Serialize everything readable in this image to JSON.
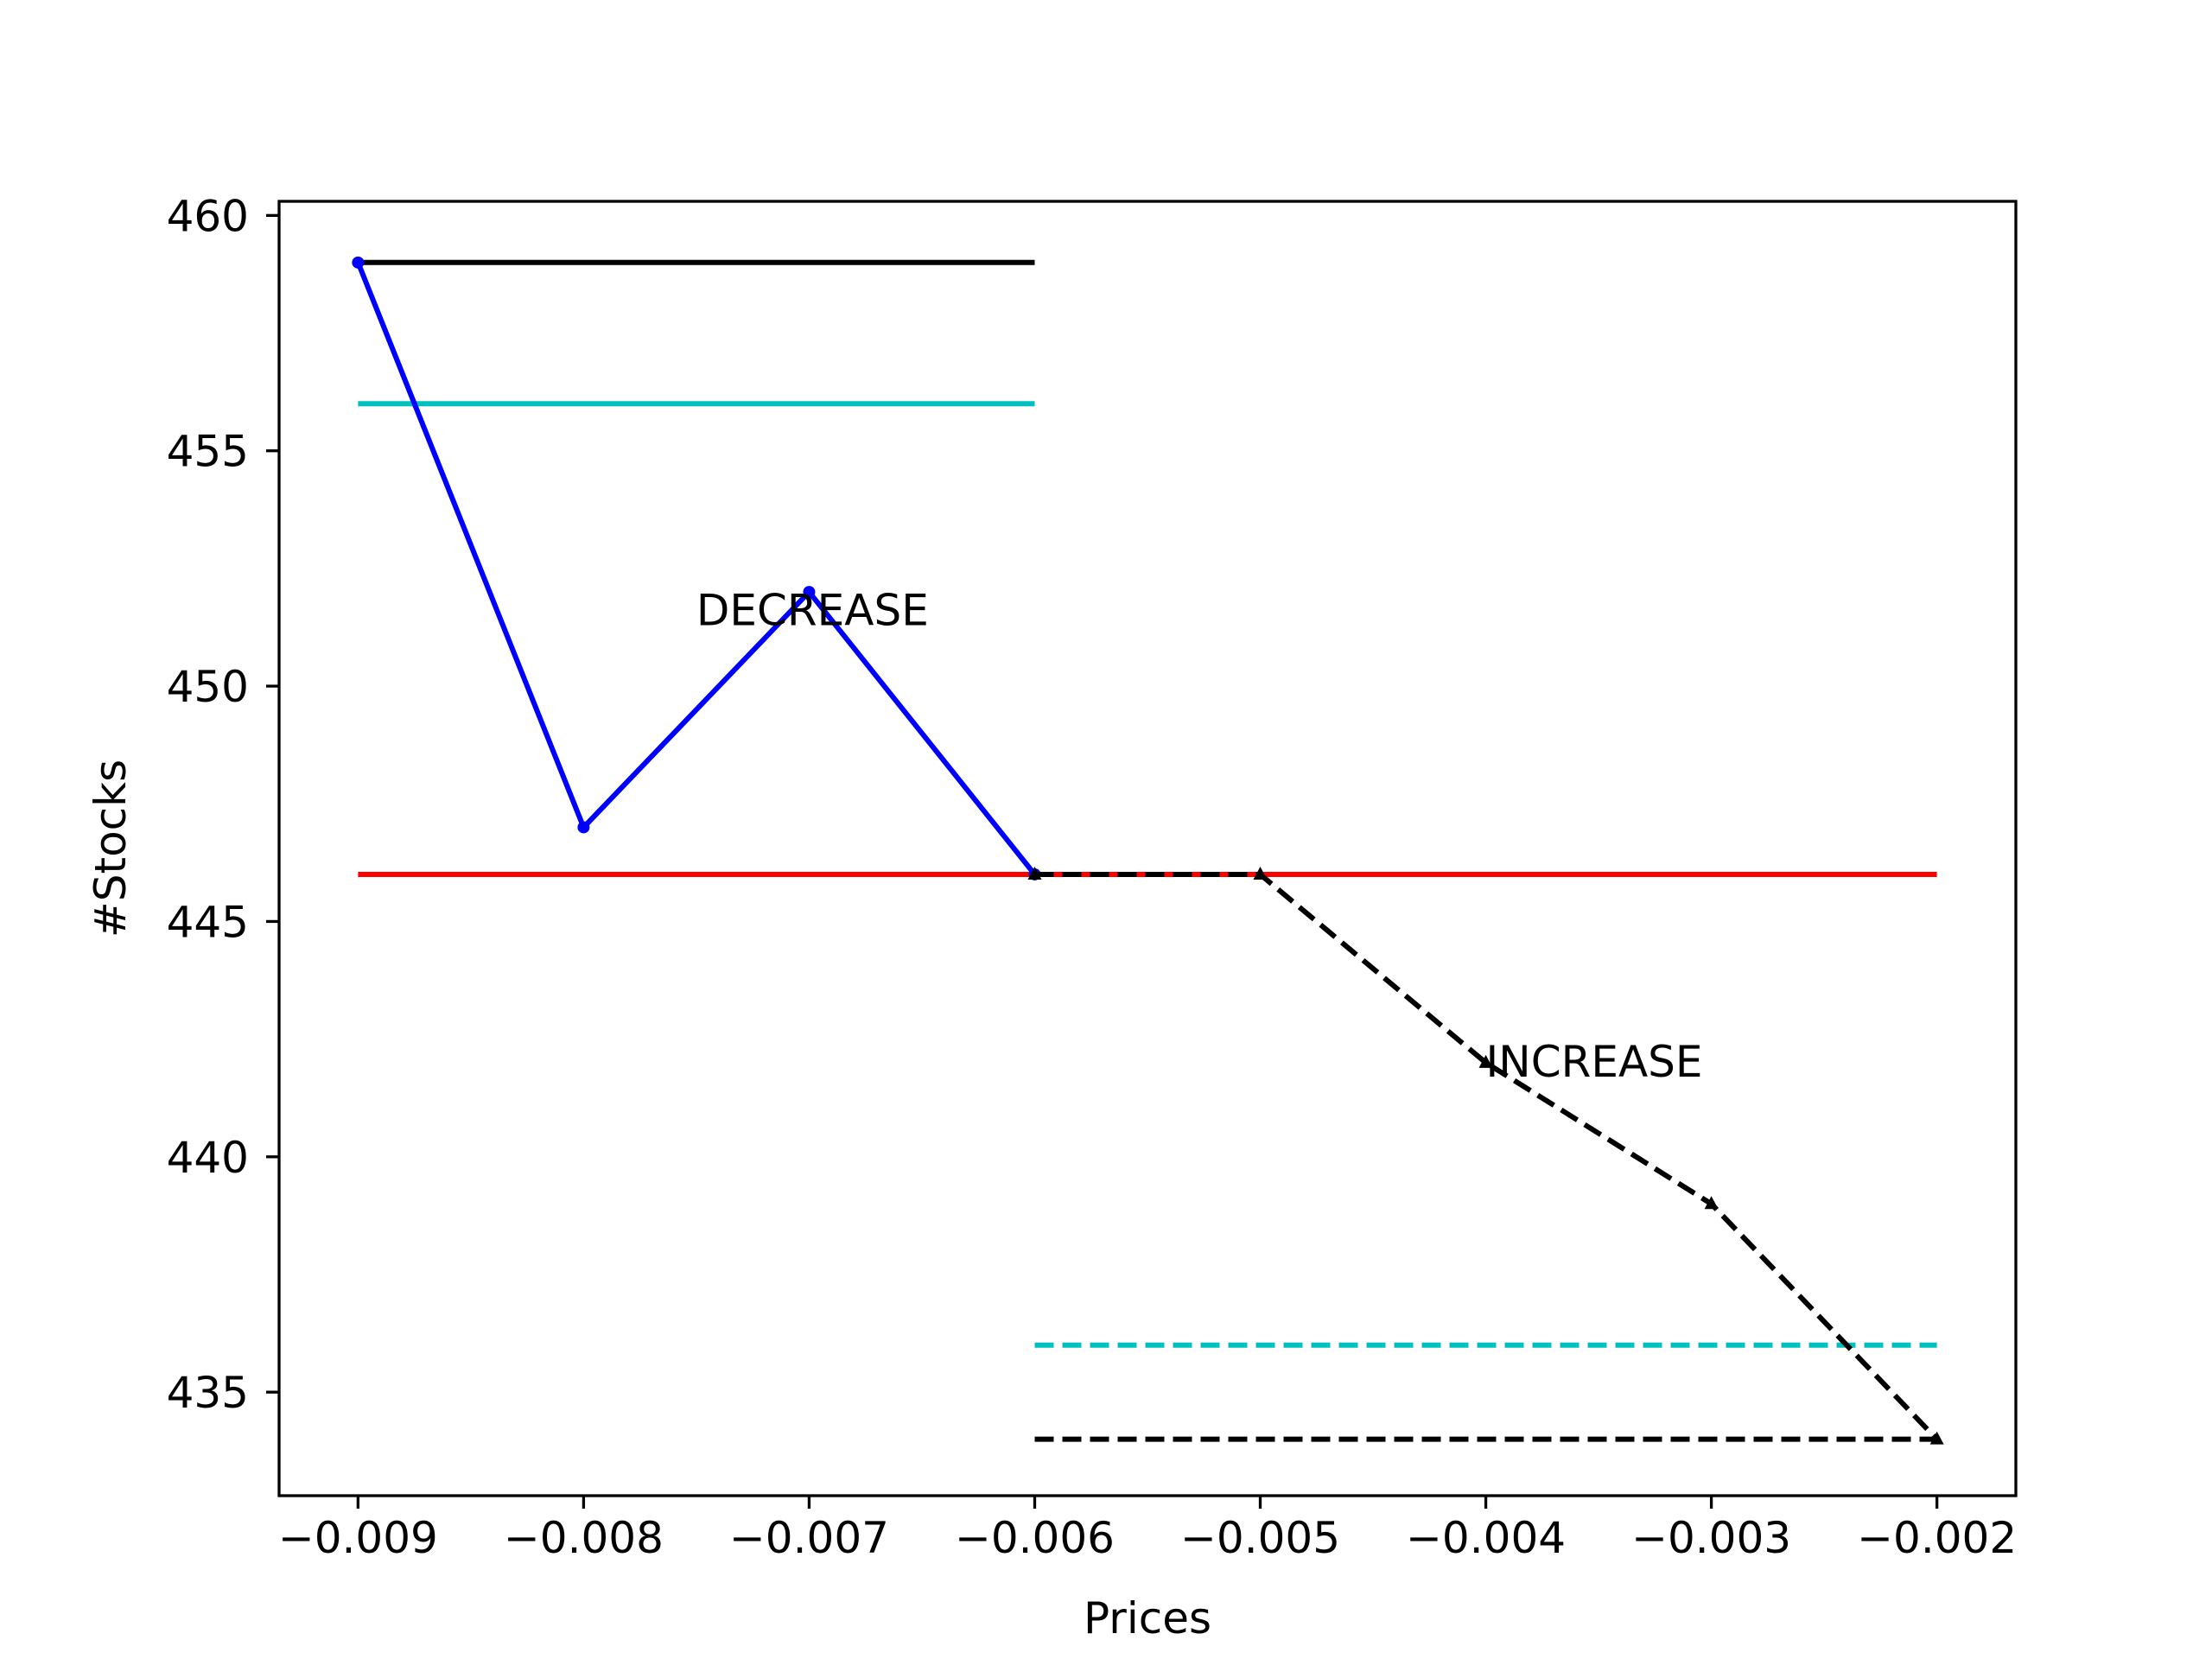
{
  "chart_data": {
    "type": "line",
    "title": "",
    "xlabel": "Prices",
    "ylabel": "#Stocks",
    "xlim": [
      -0.00935,
      -0.00165
    ],
    "ylim": [
      432.8,
      460.3
    ],
    "x_ticks": [
      {
        "value": -0.009,
        "label": "−0.009"
      },
      {
        "value": -0.008,
        "label": "−0.008"
      },
      {
        "value": -0.007,
        "label": "−0.007"
      },
      {
        "value": -0.006,
        "label": "−0.006"
      },
      {
        "value": -0.005,
        "label": "−0.005"
      },
      {
        "value": -0.004,
        "label": "−0.004"
      },
      {
        "value": -0.003,
        "label": "−0.003"
      },
      {
        "value": -0.002,
        "label": "−0.002"
      }
    ],
    "y_ticks": [
      {
        "value": 435,
        "label": "435"
      },
      {
        "value": 440,
        "label": "440"
      },
      {
        "value": 445,
        "label": "445"
      },
      {
        "value": 450,
        "label": "450"
      },
      {
        "value": 455,
        "label": "455"
      },
      {
        "value": 460,
        "label": "460"
      }
    ],
    "grid": false,
    "legend": false,
    "series": [
      {
        "id": "ref-black-solid",
        "x": [
          -0.009,
          -0.006
        ],
        "y": [
          459,
          459
        ],
        "color": "#000000",
        "dash": "solid",
        "marker": "none"
      },
      {
        "id": "ref-cyan-solid",
        "x": [
          -0.009,
          -0.006
        ],
        "y": [
          456,
          456
        ],
        "color": "#00bfbf",
        "dash": "solid",
        "marker": "none"
      },
      {
        "id": "ref-red-solid",
        "x": [
          -0.009,
          -0.002
        ],
        "y": [
          446,
          446
        ],
        "color": "#ff0000",
        "dash": "solid",
        "marker": "none"
      },
      {
        "id": "ref-cyan-dashed",
        "x": [
          -0.006,
          -0.002
        ],
        "y": [
          436,
          436
        ],
        "color": "#00bfbf",
        "dash": "dashed",
        "marker": "none"
      },
      {
        "id": "ref-black-dashed",
        "x": [
          -0.006,
          -0.002
        ],
        "y": [
          434,
          434
        ],
        "color": "#000000",
        "dash": "dashed",
        "marker": "none"
      },
      {
        "id": "decrease-line",
        "x": [
          -0.009,
          -0.008,
          -0.007,
          -0.006
        ],
        "y": [
          459,
          447,
          452,
          446
        ],
        "color": "#0000ff",
        "dash": "solid",
        "marker": "dot"
      },
      {
        "id": "increase-line",
        "x": [
          -0.006,
          -0.005,
          -0.004,
          -0.003,
          -0.002
        ],
        "y": [
          446,
          446,
          442,
          439,
          434
        ],
        "color": "#000000",
        "dash": "dashed",
        "marker": "triangle"
      }
    ],
    "annotations": [
      {
        "text": "DECREASE",
        "x": -0.0075,
        "y": 451.3
      },
      {
        "text": "INCREASE",
        "x": -0.004,
        "y": 441.7
      }
    ]
  }
}
